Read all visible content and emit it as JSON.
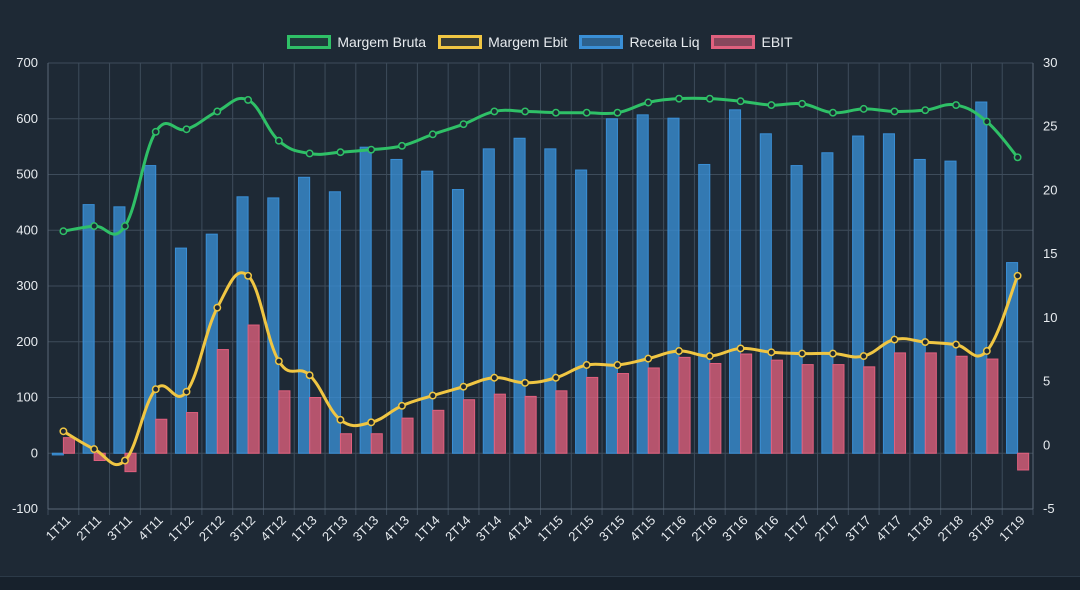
{
  "chart_data": {
    "type": "bar",
    "categories": [
      "1T11",
      "2T11",
      "3T11",
      "4T11",
      "1T12",
      "2T12",
      "3T12",
      "4T12",
      "1T13",
      "2T13",
      "3T13",
      "4T13",
      "1T14",
      "2T14",
      "3T14",
      "4T14",
      "1T15",
      "2T15",
      "3T15",
      "4T15",
      "1T16",
      "2T16",
      "3T16",
      "4T16",
      "1T17",
      "2T17",
      "3T17",
      "4T17",
      "1T18",
      "2T18",
      "3T18",
      "1T19"
    ],
    "bar_series": [
      {
        "name": "Receita Liq",
        "color": "#3a8fd6",
        "axis": "left",
        "values": [
          -3,
          446,
          442,
          516,
          368,
          393,
          460,
          458,
          495,
          469,
          549,
          527,
          506,
          473,
          546,
          565,
          546,
          508,
          600,
          607,
          601,
          518,
          616,
          573,
          516,
          539,
          569,
          573,
          527,
          524,
          630,
          342
        ]
      },
      {
        "name": "EBIT",
        "color": "#e0607e",
        "axis": "left",
        "values": [
          28,
          -13,
          -33,
          61,
          73,
          186,
          230,
          112,
          100,
          35,
          35,
          63,
          77,
          96,
          106,
          102,
          112,
          136,
          143,
          153,
          172,
          161,
          178,
          167,
          159,
          159,
          155,
          180,
          180,
          174,
          169,
          -30
        ]
      }
    ],
    "line_series": [
      {
        "name": "Margem Bruta",
        "color": "#2fc067",
        "axis": "right",
        "values": [
          16.8,
          17.2,
          17.2,
          24.6,
          24.8,
          26.2,
          27.1,
          23.9,
          22.9,
          23.0,
          23.2,
          23.5,
          24.4,
          25.2,
          26.2,
          26.2,
          26.1,
          26.1,
          26.1,
          26.9,
          27.2,
          27.2,
          27.0,
          26.7,
          26.8,
          26.1,
          26.4,
          26.2,
          26.3,
          26.7,
          25.4,
          22.6
        ]
      },
      {
        "name": "Margem Ebit",
        "color": "#f0c643",
        "axis": "right",
        "values": [
          1.1,
          -0.3,
          -1.2,
          4.4,
          4.2,
          10.8,
          13.3,
          6.6,
          5.5,
          2.0,
          1.8,
          3.1,
          3.9,
          4.6,
          5.3,
          4.9,
          5.3,
          6.3,
          6.3,
          6.8,
          7.4,
          7.0,
          7.6,
          7.3,
          7.2,
          7.2,
          7.0,
          8.3,
          8.1,
          7.9,
          7.4,
          13.3
        ]
      }
    ],
    "legend": [
      "Margem Bruta",
      "Margem Ebit",
      "Receita Liq",
      "EBIT"
    ],
    "y_left": {
      "min": -100,
      "max": 700,
      "step": 100,
      "ticks": [
        "-100",
        "0",
        "100",
        "200",
        "300",
        "400",
        "500",
        "600",
        "700"
      ]
    },
    "y_right": {
      "min": -5,
      "max": 30,
      "step": 5,
      "ticks": [
        "-5",
        "0",
        "5",
        "10",
        "15",
        "20",
        "25",
        "30"
      ]
    },
    "grid": true,
    "legend_position": "top",
    "title": "",
    "xlabel": "",
    "ylabel": ""
  }
}
